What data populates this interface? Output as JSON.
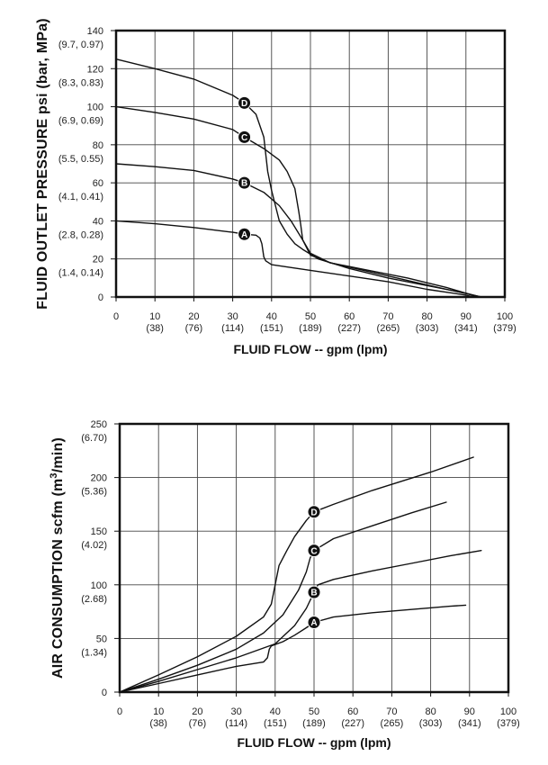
{
  "chart_data": [
    {
      "type": "line",
      "xlabel": "FLUID FLOW -- gpm (lpm)",
      "ylabel": "FLUID OUTLET PRESSURE psi (bar, MPa)",
      "xlim": [
        0,
        100
      ],
      "ylim": [
        0,
        140
      ],
      "grid": true,
      "x_ticks": [
        {
          "v": 0,
          "label": "0",
          "sub": ""
        },
        {
          "v": 10,
          "label": "10",
          "sub": "(38)"
        },
        {
          "v": 20,
          "label": "20",
          "sub": "(76)"
        },
        {
          "v": 30,
          "label": "30",
          "sub": "(114)"
        },
        {
          "v": 40,
          "label": "40",
          "sub": "(151)"
        },
        {
          "v": 50,
          "label": "50",
          "sub": "(189)"
        },
        {
          "v": 60,
          "label": "60",
          "sub": "(227)"
        },
        {
          "v": 70,
          "label": "70",
          "sub": "(265)"
        },
        {
          "v": 80,
          "label": "80",
          "sub": "(303)"
        },
        {
          "v": 90,
          "label": "90",
          "sub": "(341)"
        },
        {
          "v": 100,
          "label": "100",
          "sub": "(379)"
        }
      ],
      "y_ticks": [
        {
          "v": 140,
          "label": "140",
          "sub": "(9.7, 0.97)"
        },
        {
          "v": 120,
          "label": "120",
          "sub": "(8.3, 0.83)"
        },
        {
          "v": 100,
          "label": "100",
          "sub": "(6.9, 0.69)"
        },
        {
          "v": 80,
          "label": "80",
          "sub": "(5.5, 0.55)"
        },
        {
          "v": 60,
          "label": "60",
          "sub": "(4.1, 0.41)"
        },
        {
          "v": 40,
          "label": "40",
          "sub": "(2.8, 0.28)"
        },
        {
          "v": 20,
          "label": "20",
          "sub": "(1.4, 0.14)"
        },
        {
          "v": 0,
          "label": "0",
          "sub": ""
        }
      ],
      "series": [
        {
          "name": "A",
          "marker": [
            33,
            33
          ],
          "points": [
            [
              0,
              40
            ],
            [
              10,
              38.5
            ],
            [
              20,
              36.5
            ],
            [
              30,
              34
            ],
            [
              33,
              33
            ],
            [
              36,
              32.5
            ],
            [
              37,
              31
            ],
            [
              37.5,
              28
            ],
            [
              38,
              21
            ],
            [
              38.5,
              19
            ],
            [
              40,
              17
            ],
            [
              50,
              14
            ],
            [
              60,
              11
            ],
            [
              70,
              8
            ],
            [
              80,
              4
            ],
            [
              90,
              1
            ],
            [
              92,
              0
            ]
          ]
        },
        {
          "name": "B",
          "marker": [
            33,
            60
          ],
          "points": [
            [
              0,
              70
            ],
            [
              10,
              68.5
            ],
            [
              20,
              66.5
            ],
            [
              30,
              62
            ],
            [
              33,
              60
            ],
            [
              38,
              55
            ],
            [
              42,
              48
            ],
            [
              45,
              40
            ],
            [
              48,
              30
            ],
            [
              50,
              22
            ],
            [
              55,
              18
            ],
            [
              65,
              14
            ],
            [
              75,
              10
            ],
            [
              85,
              5
            ],
            [
              90,
              2
            ],
            [
              93,
              0
            ]
          ]
        },
        {
          "name": "C",
          "marker": [
            33,
            84
          ],
          "points": [
            [
              0,
              100
            ],
            [
              10,
              97
            ],
            [
              20,
              93.5
            ],
            [
              30,
              88
            ],
            [
              33,
              84
            ],
            [
              38,
              78
            ],
            [
              42,
              72
            ],
            [
              44,
              66
            ],
            [
              46,
              57
            ],
            [
              47,
              45
            ],
            [
              47.5,
              38
            ],
            [
              48,
              30
            ],
            [
              50,
              23
            ],
            [
              55,
              18
            ],
            [
              70,
              11
            ],
            [
              85,
              4
            ],
            [
              94,
              0
            ]
          ]
        },
        {
          "name": "D",
          "marker": [
            33,
            102
          ],
          "points": [
            [
              0,
              125
            ],
            [
              10,
              120
            ],
            [
              20,
              114.5
            ],
            [
              30,
              106
            ],
            [
              33,
              102
            ],
            [
              36,
              96
            ],
            [
              38,
              84
            ],
            [
              39,
              66
            ],
            [
              40,
              56
            ],
            [
              41,
              48
            ],
            [
              42,
              40
            ],
            [
              44,
              33
            ],
            [
              46,
              28
            ],
            [
              48,
              25
            ],
            [
              52,
              20
            ],
            [
              60,
              15
            ],
            [
              70,
              10
            ],
            [
              80,
              6
            ],
            [
              90,
              2
            ],
            [
              94,
              0
            ]
          ]
        }
      ]
    },
    {
      "type": "line",
      "xlabel": "FLUID FLOW -- gpm (lpm)",
      "ylabel": "AIR CONSUMPTION scfm (m",
      "ylabel_sup": "3",
      "ylabel_tail": "/min)",
      "xlim": [
        0,
        100
      ],
      "ylim": [
        0,
        250
      ],
      "grid": true,
      "x_ticks": [
        {
          "v": 0,
          "label": "0",
          "sub": ""
        },
        {
          "v": 10,
          "label": "10",
          "sub": "(38)"
        },
        {
          "v": 20,
          "label": "20",
          "sub": "(76)"
        },
        {
          "v": 30,
          "label": "30",
          "sub": "(114)"
        },
        {
          "v": 40,
          "label": "40",
          "sub": "(151)"
        },
        {
          "v": 50,
          "label": "50",
          "sub": "(189)"
        },
        {
          "v": 60,
          "label": "60",
          "sub": "(227)"
        },
        {
          "v": 70,
          "label": "70",
          "sub": "(265)"
        },
        {
          "v": 80,
          "label": "80",
          "sub": "(303)"
        },
        {
          "v": 90,
          "label": "90",
          "sub": "(341)"
        },
        {
          "v": 100,
          "label": "100",
          "sub": "(379)"
        }
      ],
      "y_ticks": [
        {
          "v": 250,
          "label": "250",
          "sub": "(6.70)"
        },
        {
          "v": 200,
          "label": "200",
          "sub": "(5.36)"
        },
        {
          "v": 150,
          "label": "150",
          "sub": "(4.02)"
        },
        {
          "v": 100,
          "label": "100",
          "sub": "(2.68)"
        },
        {
          "v": 50,
          "label": "50",
          "sub": "(1.34)"
        },
        {
          "v": 0,
          "label": "0",
          "sub": ""
        }
      ],
      "series": [
        {
          "name": "A",
          "marker": [
            50,
            65
          ],
          "points": [
            [
              0,
              0
            ],
            [
              10,
              8
            ],
            [
              20,
              16
            ],
            [
              30,
              24
            ],
            [
              37,
              28
            ],
            [
              38,
              32
            ],
            [
              38.5,
              40
            ],
            [
              39,
              43
            ],
            [
              42,
              47
            ],
            [
              45,
              53
            ],
            [
              48,
              60
            ],
            [
              50,
              65
            ],
            [
              55,
              70
            ],
            [
              65,
              74
            ],
            [
              75,
              77
            ],
            [
              85,
              80
            ],
            [
              89,
              81
            ]
          ]
        },
        {
          "name": "B",
          "marker": [
            50,
            93
          ],
          "points": [
            [
              0,
              0
            ],
            [
              10,
              10
            ],
            [
              20,
              21
            ],
            [
              30,
              32
            ],
            [
              40,
              45
            ],
            [
              45,
              62
            ],
            [
              48,
              78
            ],
            [
              50,
              93
            ],
            [
              51,
              100
            ],
            [
              55,
              105
            ],
            [
              65,
              113
            ],
            [
              75,
              120
            ],
            [
              85,
              127
            ],
            [
              93,
              132
            ]
          ]
        },
        {
          "name": "C",
          "marker": [
            50,
            132
          ],
          "points": [
            [
              0,
              0
            ],
            [
              10,
              12
            ],
            [
              20,
              25
            ],
            [
              30,
              40
            ],
            [
              37,
              55
            ],
            [
              42,
              72
            ],
            [
              46,
              95
            ],
            [
              48,
              112
            ],
            [
              49,
              125
            ],
            [
              50,
              132
            ],
            [
              55,
              143
            ],
            [
              65,
              155
            ],
            [
              75,
              167
            ],
            [
              84,
              177
            ]
          ]
        },
        {
          "name": "D",
          "marker": [
            50,
            168
          ],
          "points": [
            [
              0,
              0
            ],
            [
              10,
              16
            ],
            [
              20,
              33
            ],
            [
              30,
              52
            ],
            [
              37,
              70
            ],
            [
              39,
              82
            ],
            [
              41,
              118
            ],
            [
              43,
              132
            ],
            [
              45,
              145
            ],
            [
              48,
              160
            ],
            [
              50,
              168
            ],
            [
              55,
              175
            ],
            [
              65,
              188
            ],
            [
              80,
              205
            ],
            [
              91,
              219
            ]
          ]
        }
      ]
    }
  ]
}
